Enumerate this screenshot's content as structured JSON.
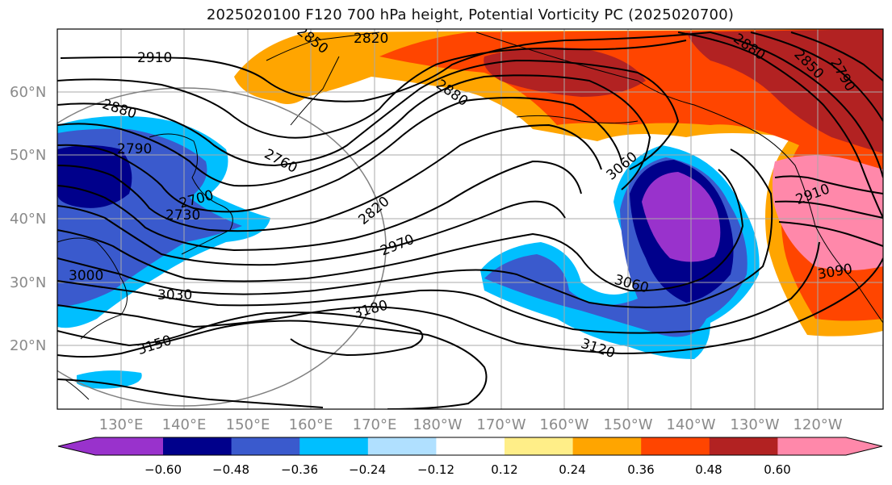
{
  "title": "2025020100 F120 700 hPa height, Potential Vorticity PC (2025020700)",
  "map": {
    "lat_labels": [
      "60°N",
      "50°N",
      "40°N",
      "30°N",
      "20°N"
    ],
    "lon_labels": [
      "130°E",
      "140°E",
      "150°E",
      "160°E",
      "170°E",
      "180°W",
      "170°W",
      "160°W",
      "150°W",
      "140°W",
      "130°W",
      "120°W"
    ],
    "contour_labels": [
      "2820",
      "2850",
      "2880",
      "2910",
      "2880",
      "2790",
      "2760",
      "2700",
      "2730",
      "2820",
      "2970",
      "3060",
      "3060",
      "2910",
      "3090",
      "3000",
      "3030",
      "3180",
      "3150",
      "3120",
      "2880",
      "2850",
      "2790"
    ]
  },
  "colorbar": {
    "ticks": [
      "−0.60",
      "−0.48",
      "−0.36",
      "−0.24",
      "−0.12",
      "0.12",
      "0.24",
      "0.36",
      "0.48",
      "0.60"
    ],
    "colors": [
      "#9932cc",
      "#00008b",
      "#3a5acd",
      "#00bfff",
      "#b0e0ff",
      "#ffffff",
      "#ffee88",
      "#ffa500",
      "#ff4500",
      "#b22222",
      "#ff88aa",
      "#ffffff"
    ]
  }
}
